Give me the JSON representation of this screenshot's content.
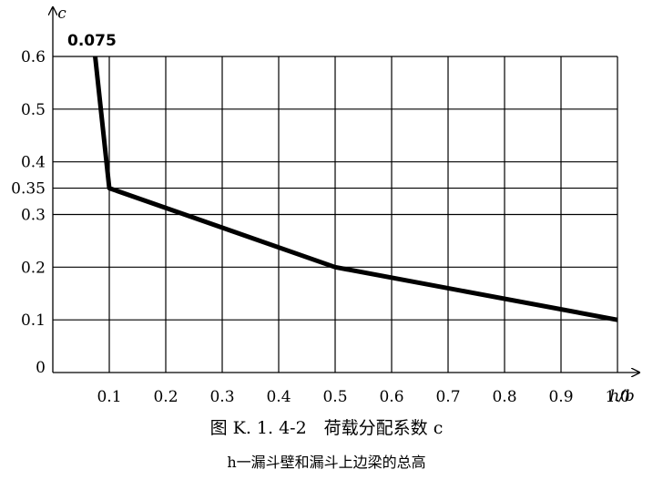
{
  "chart_data": {
    "type": "line",
    "title": "图 K. 1. 4-2　荷载分配系数 c",
    "subtitle": "h一漏斗壁和漏斗上边梁的总高",
    "xlabel": "h/b",
    "ylabel": "c",
    "xlim": [
      0,
      1.05
    ],
    "ylim": [
      0,
      0.6
    ],
    "x_ticks": [
      "0.1",
      "0.2",
      "0.3",
      "0.4",
      "0.5",
      "0.6",
      "0.7",
      "0.8",
      "0.9",
      "1.0"
    ],
    "y_ticks": [
      "0.6",
      "0.5",
      "0.4",
      "0.35",
      "0.3",
      "0.2",
      "0.1",
      "0"
    ],
    "grid": true,
    "annotation": "0.075",
    "series": [
      {
        "x": [
          0.075,
          0.1,
          0.5,
          1.0
        ],
        "y": [
          0.6,
          0.35,
          0.2,
          0.1
        ]
      }
    ]
  }
}
